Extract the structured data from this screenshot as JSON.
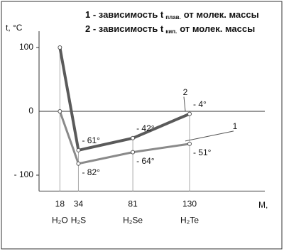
{
  "chart_data": {
    "type": "line",
    "legend": [
      {
        "text": "1 - зависимость t",
        "sub": "плав.",
        "rest": "от молек. массы"
      },
      {
        "text": "2 - зависимость t",
        "sub": "кип.",
        "rest": "от молек. массы"
      }
    ],
    "y_label": "t, °C",
    "x_label": "М,",
    "x": [
      18,
      34,
      81,
      130
    ],
    "compounds": [
      "H₂O",
      "H₂S",
      "H₂Se",
      "H₂Te"
    ],
    "xlim": [
      0,
      195
    ],
    "xticks": [
      18,
      34,
      81,
      130
    ],
    "ylim": [
      -125,
      120
    ],
    "yticks": [
      100,
      0,
      {
        "value": -100,
        "label": "- 100"
      }
    ],
    "series": [
      {
        "name": "1",
        "color": "#8a8a8a",
        "values": [
          0,
          -82,
          -64,
          -51
        ],
        "value_labels": [
          null,
          "- 82°",
          "- 64°",
          "- 51°"
        ]
      },
      {
        "name": "2",
        "color": "#5a5a5a",
        "values": [
          100,
          -61,
          -42,
          -4
        ],
        "value_labels": [
          null,
          "- 61°",
          "- 42°",
          "- 4°"
        ]
      }
    ]
  }
}
